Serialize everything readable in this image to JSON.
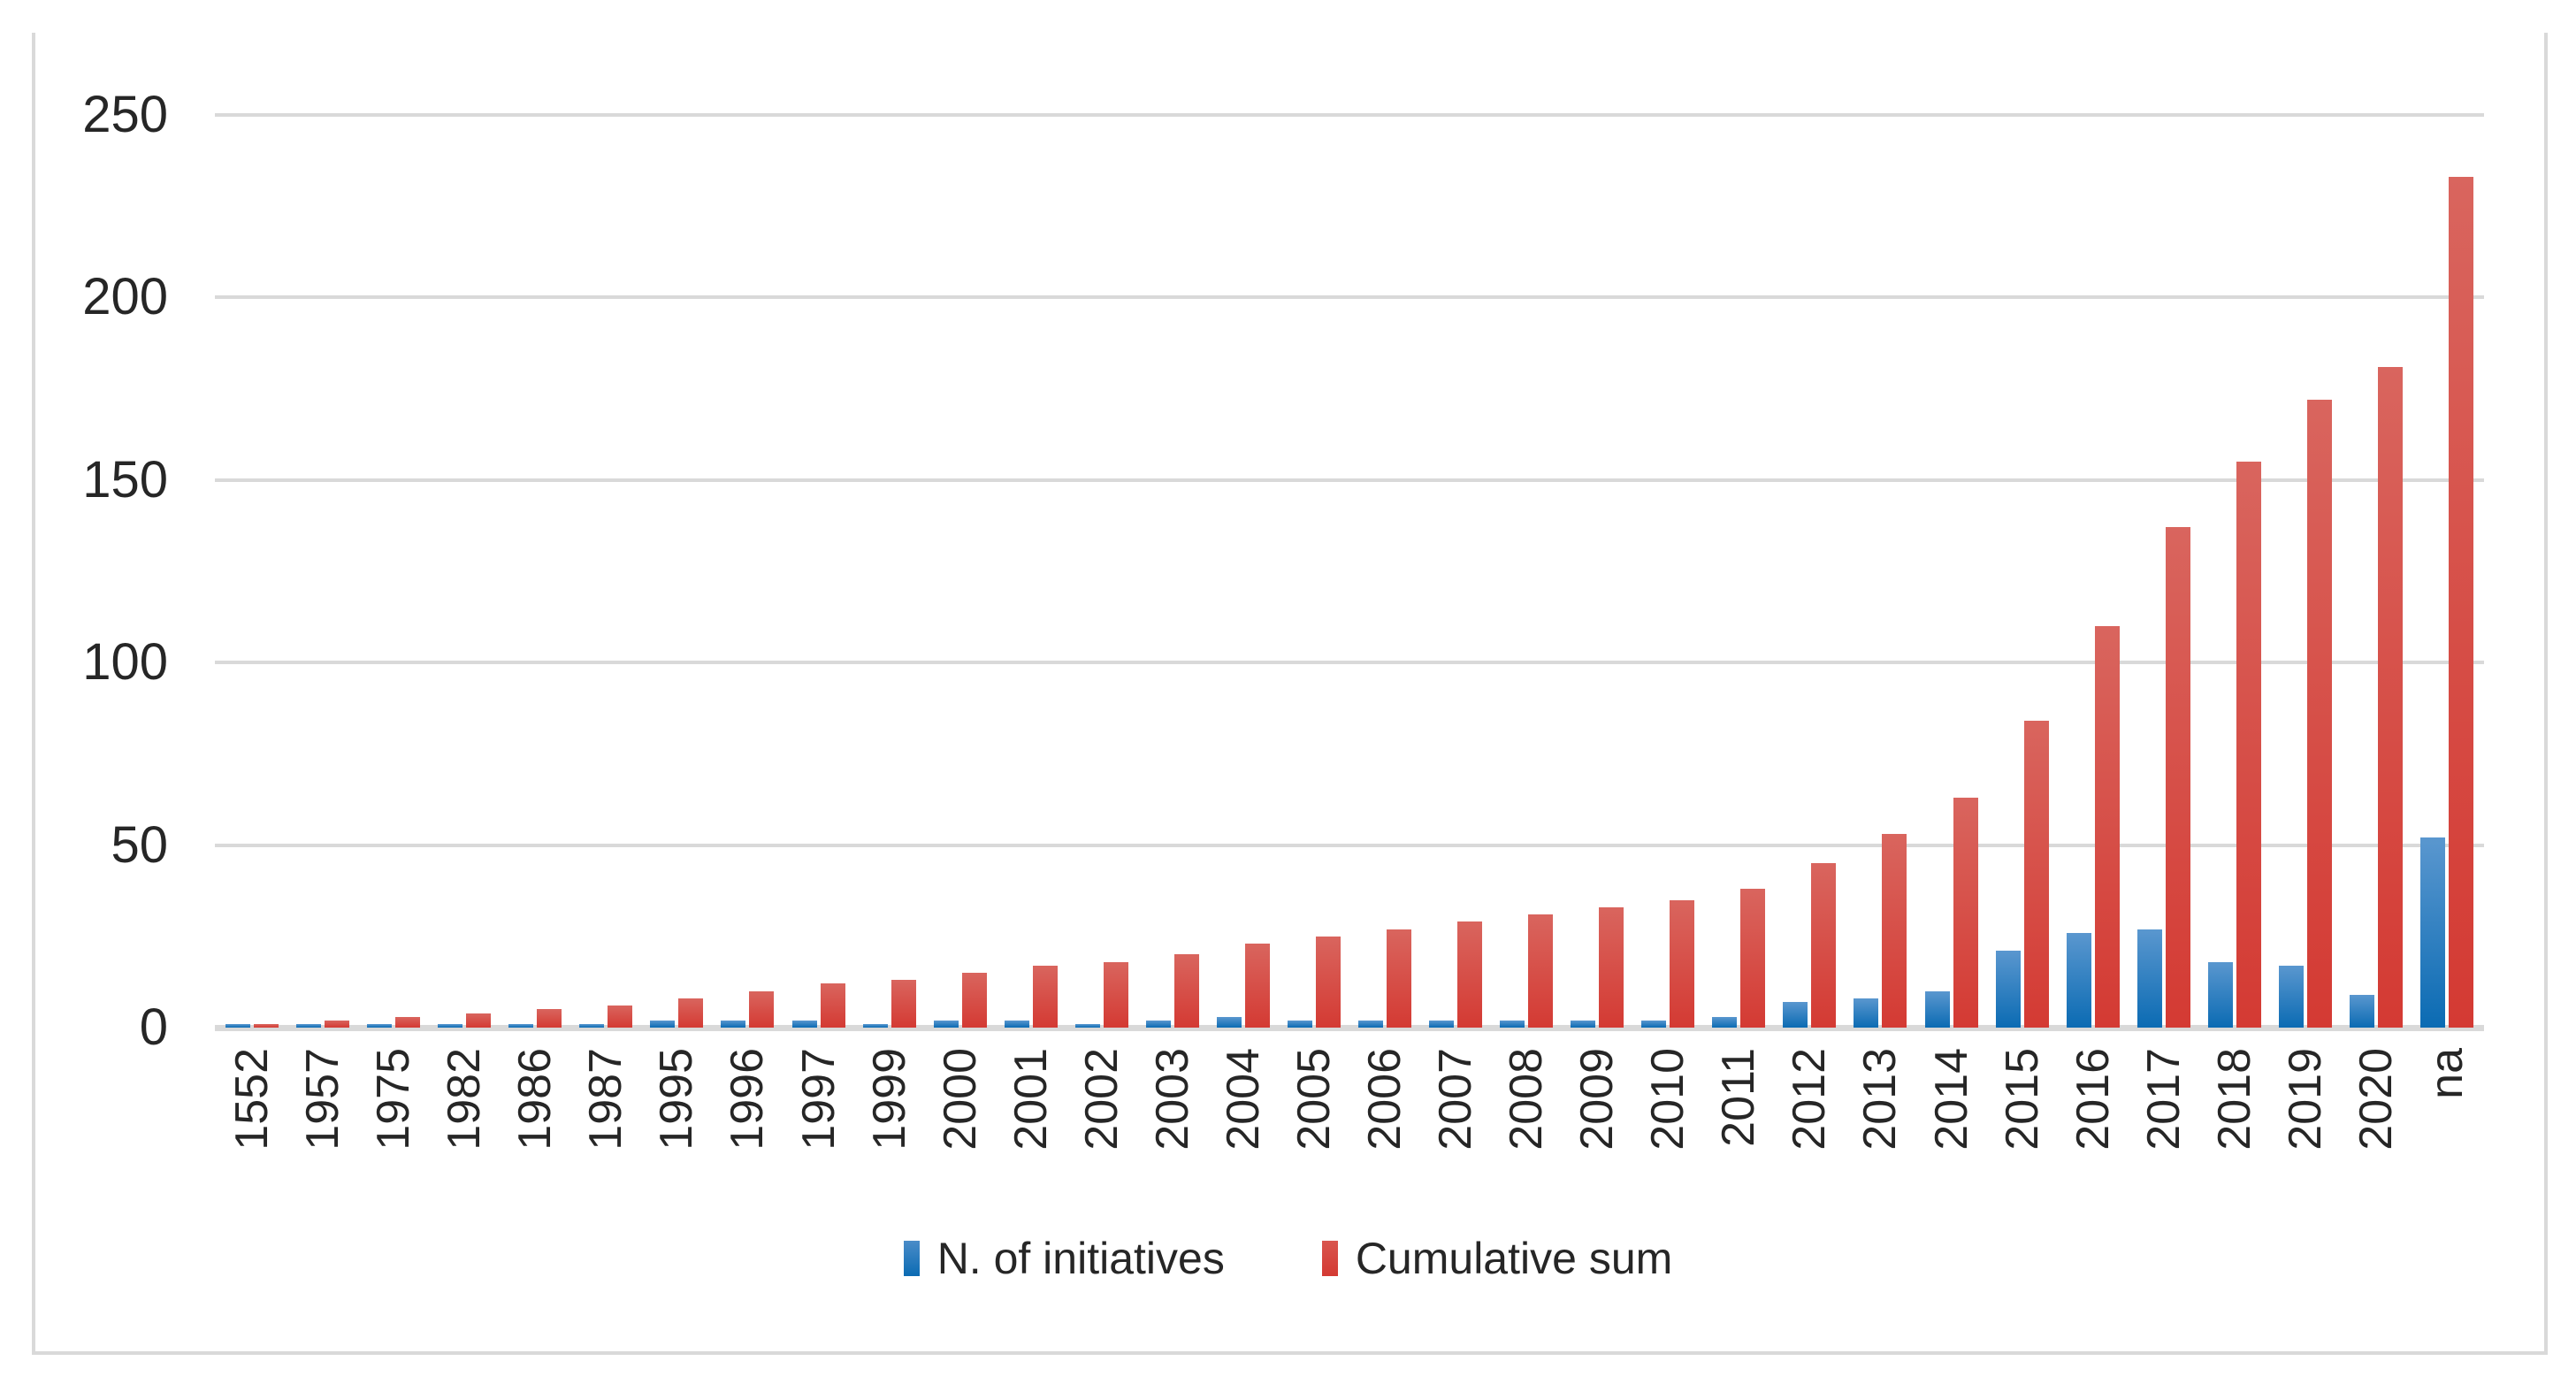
{
  "figure": {
    "background": "#ffffff",
    "frame_color": "#d9d9d9",
    "gridline_color": "#d9d9d9",
    "text_color": "#262626"
  },
  "chart_data": {
    "type": "bar",
    "title": "",
    "xlabel": "",
    "ylabel": "",
    "ylim": [
      0,
      250
    ],
    "yticks": [
      0,
      50,
      100,
      150,
      200,
      250
    ],
    "grid": true,
    "legend_position": "bottom",
    "categories": [
      "1552",
      "1957",
      "1975",
      "1982",
      "1986",
      "1987",
      "1995",
      "1996",
      "1997",
      "1999",
      "2000",
      "2001",
      "2002",
      "2003",
      "2004",
      "2005",
      "2006",
      "2007",
      "2008",
      "2009",
      "2010",
      "2011",
      "2012",
      "2013",
      "2014",
      "2015",
      "2016",
      "2017",
      "2018",
      "2019",
      "2020",
      "na"
    ],
    "series": [
      {
        "name": "N. of initiatives",
        "color": "#1f77b4",
        "color_top": "#5a97cf",
        "color_bottom": "#0b6bb3",
        "values": [
          1,
          1,
          1,
          1,
          1,
          1,
          2,
          2,
          2,
          1,
          2,
          2,
          1,
          2,
          3,
          2,
          2,
          2,
          2,
          2,
          2,
          3,
          7,
          8,
          10,
          21,
          26,
          27,
          18,
          17,
          9,
          52
        ]
      },
      {
        "name": "Cumulative sum",
        "color": "#d43a33",
        "color_top": "#d9655e",
        "color_bottom": "#d43a33",
        "values": [
          1,
          2,
          3,
          4,
          5,
          6,
          8,
          10,
          12,
          13,
          15,
          17,
          18,
          20,
          23,
          25,
          27,
          29,
          31,
          33,
          35,
          38,
          45,
          53,
          63,
          84,
          110,
          137,
          155,
          172,
          181,
          233
        ]
      }
    ]
  },
  "legend": {
    "items": [
      {
        "label": "N. of initiatives"
      },
      {
        "label": "Cumulative sum"
      }
    ]
  }
}
